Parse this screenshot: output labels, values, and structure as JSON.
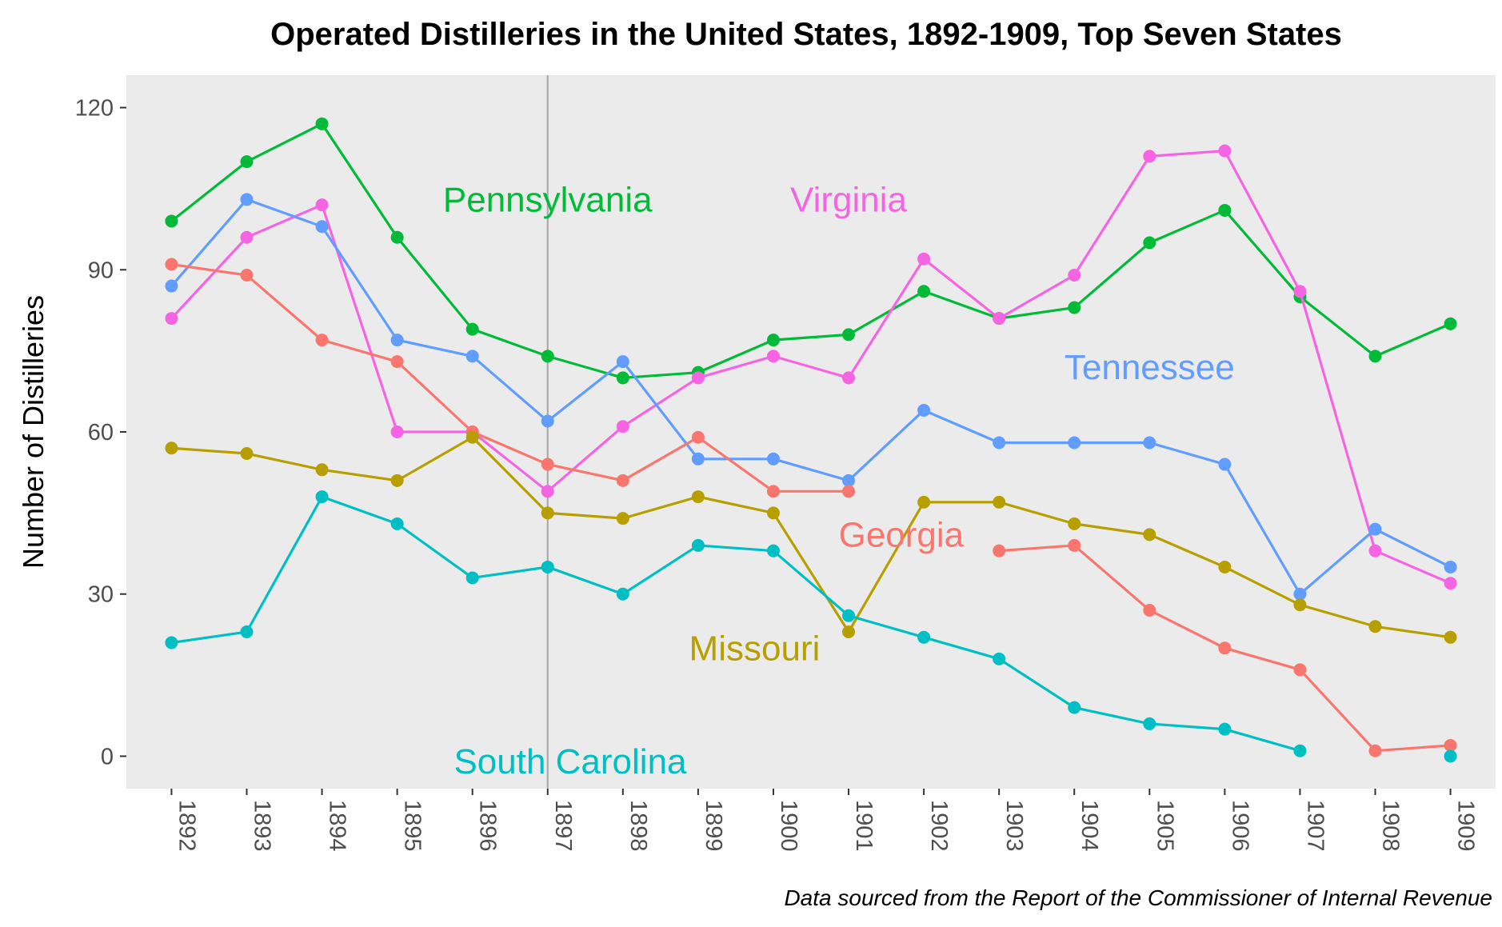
{
  "chart_data": {
    "type": "line",
    "title": "Operated Distilleries in the United States, 1892-1909, Top Seven States",
    "xlabel": "",
    "ylabel": "Number of Distilleries",
    "caption": "Data sourced from the Report of the Commissioner of Internal Revenue",
    "x": [
      "1892",
      "1893",
      "1894",
      "1895",
      "1896",
      "1897",
      "1898",
      "1899",
      "1900",
      "1901",
      "1902",
      "1903",
      "1904",
      "1905",
      "1906",
      "1907",
      "1908",
      "1909"
    ],
    "ylim": [
      -6,
      126
    ],
    "yticks": [
      0,
      30,
      60,
      90,
      120
    ],
    "yticklabels": [
      "0",
      "30",
      "60",
      "90",
      "120"
    ],
    "reference_line_x": "1897",
    "grid": false,
    "panel_background": "#ebebeb",
    "series": [
      {
        "name": "Pennsylvania",
        "color": "#00ba38",
        "values": [
          99,
          110,
          117,
          96,
          79,
          74,
          70,
          71,
          77,
          78,
          86,
          81,
          83,
          95,
          101,
          85,
          74,
          80
        ],
        "label_at": {
          "x": "1897",
          "y": 103
        }
      },
      {
        "name": "Virginia",
        "color": "#f564e3",
        "values": [
          81,
          96,
          102,
          60,
          60,
          49,
          61,
          70,
          74,
          70,
          92,
          81,
          89,
          111,
          112,
          86,
          38,
          32
        ],
        "label_at": {
          "x": "1901",
          "y": 103
        }
      },
      {
        "name": "Tennessee",
        "color": "#619cff",
        "values": [
          87,
          103,
          98,
          77,
          74,
          62,
          73,
          55,
          55,
          51,
          64,
          58,
          58,
          58,
          54,
          30,
          42,
          35
        ],
        "label_at": {
          "x": "1905",
          "y": 72
        }
      },
      {
        "name": "Georgia",
        "color": "#f8766d",
        "values": [
          91,
          89,
          77,
          73,
          60,
          54,
          51,
          59,
          49,
          49,
          null,
          38,
          39,
          27,
          20,
          16,
          1,
          2
        ],
        "label_at": {
          "x": "1901.7",
          "y": 41
        }
      },
      {
        "name": "Missouri",
        "color": "#b79f00",
        "values": [
          57,
          56,
          53,
          51,
          59,
          45,
          44,
          48,
          45,
          23,
          47,
          47,
          43,
          41,
          35,
          28,
          24,
          22
        ],
        "label_at": {
          "x": "1899.75",
          "y": 20
        }
      },
      {
        "name": "South Carolina",
        "color": "#00bfc4",
        "values": [
          21,
          23,
          48,
          43,
          33,
          35,
          30,
          39,
          38,
          26,
          22,
          18,
          9,
          6,
          5,
          1,
          null,
          0
        ],
        "label_at": {
          "x": "1897.3",
          "y": -1
        }
      }
    ]
  }
}
